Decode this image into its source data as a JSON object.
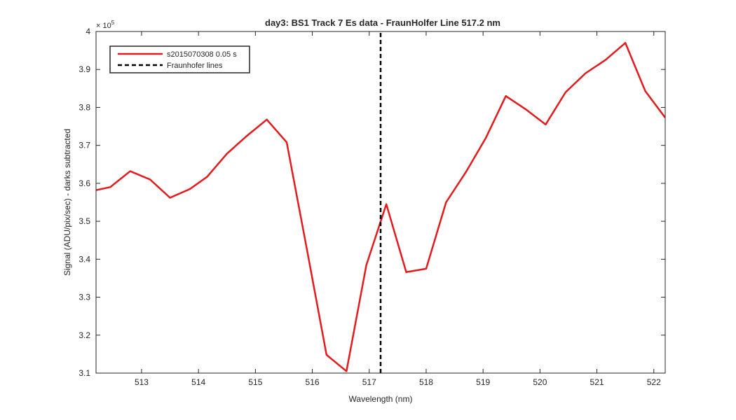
{
  "chart_data": {
    "type": "line",
    "title": "day3: BS1  Track 7 Es data - FraunHolfer Line 517.2 nm",
    "xlabel": "Wavelength (nm)",
    "ylabel": "Signal (ADU/pix/sec) - darks subtracted",
    "y_exponent_label": "× 10",
    "y_exponent": "5",
    "xlim": [
      512.2,
      522.2
    ],
    "ylim": [
      3.1,
      4.0
    ],
    "x_ticks": [
      513,
      514,
      515,
      516,
      517,
      518,
      519,
      520,
      521,
      522
    ],
    "x_tick_labels": [
      "513",
      "514",
      "515",
      "516",
      "517",
      "518",
      "519",
      "520",
      "521",
      "522"
    ],
    "y_ticks": [
      3.1,
      3.2,
      3.3,
      3.4,
      3.5,
      3.6,
      3.7,
      3.8,
      3.9,
      4.0
    ],
    "y_tick_labels": [
      "3.1",
      "3.2",
      "3.3",
      "3.4",
      "3.5",
      "3.6",
      "3.7",
      "3.8",
      "3.9",
      "4"
    ],
    "grid": false,
    "legend_position": "top-left",
    "series": [
      {
        "name": "s2015070308 0.05 s",
        "color": "#e41a1c",
        "style": "solid",
        "x": [
          512.2,
          512.45,
          512.8,
          513.15,
          513.5,
          513.85,
          514.15,
          514.5,
          514.85,
          515.2,
          515.55,
          515.9,
          516.25,
          516.6,
          516.95,
          517.3,
          517.65,
          518.0,
          518.35,
          518.7,
          519.05,
          519.4,
          519.75,
          520.1,
          520.45,
          520.8,
          521.15,
          521.5,
          521.85,
          522.2
        ],
        "y": [
          3.582,
          3.59,
          3.632,
          3.61,
          3.562,
          3.585,
          3.617,
          3.678,
          3.725,
          3.768,
          3.708,
          3.43,
          3.148,
          3.105,
          3.385,
          3.545,
          3.366,
          3.375,
          3.55,
          3.63,
          3.72,
          3.83,
          3.795,
          3.755,
          3.84,
          3.89,
          3.925,
          3.97,
          3.843,
          3.773
        ]
      },
      {
        "name": "Fraunhofer lines",
        "color": "#000000",
        "style": "dashed",
        "x": [
          517.2,
          517.2
        ],
        "y": [
          3.1,
          4.0
        ]
      }
    ]
  }
}
